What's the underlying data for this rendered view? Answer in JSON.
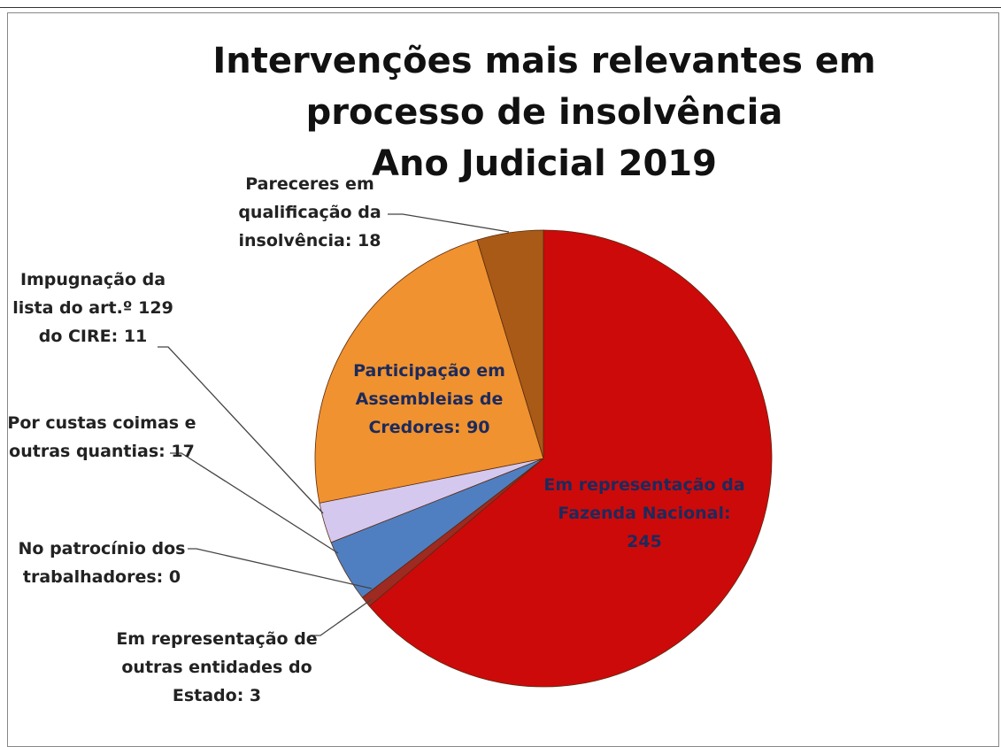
{
  "chart_data": {
    "type": "pie",
    "title": "Intervenções mais relevantes em processo de insolvência",
    "subtitle": "Ano Judicial 2019",
    "categories": [
      "Em representação da Fazenda Nacional: 245",
      "Em representação de outras entidades do Estado: 3",
      "No patrocínio dos trabalhadores: 0",
      "Por custas coimas e outras quantias: 17",
      "Impugnação da lista do art.º 129 do CIRE: 11",
      "Participação em Assembleias de Credores: 90",
      "Pareceres em qualificação da insolvência: 18"
    ],
    "values": [
      245,
      3,
      0,
      17,
      11,
      90,
      18
    ],
    "colors": [
      "#cc0a0a",
      "#9e2a22",
      "#7a9a3a",
      "#4f7fc0",
      "#d4c8ee",
      "#f0922f",
      "#a85a16"
    ]
  }
}
